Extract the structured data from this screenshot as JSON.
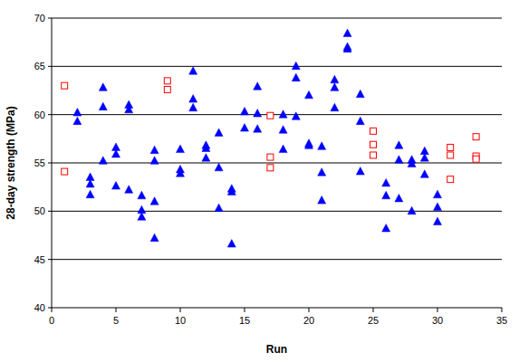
{
  "chart_data": {
    "type": "scatter",
    "xlabel": "Run",
    "ylabel": "28-day strength (MPa)",
    "xlim": [
      0,
      35
    ],
    "xticks": [
      0,
      5,
      10,
      15,
      20,
      25,
      30,
      35
    ],
    "ylim": [
      40,
      70
    ],
    "yticks": [
      40,
      45,
      50,
      55,
      60,
      65,
      70
    ],
    "grid": "y",
    "series": [
      {
        "color": "#0000ff",
        "marker": "triangle",
        "x": [
          2,
          2,
          3,
          3,
          3,
          4,
          4,
          4,
          5,
          5,
          5,
          6,
          6,
          6,
          7,
          7,
          7,
          8,
          8,
          8,
          8,
          10,
          10,
          10,
          11,
          11,
          11,
          12,
          12,
          12,
          13,
          13,
          13,
          14,
          14,
          14,
          15,
          15,
          16,
          16,
          16,
          18,
          18,
          18,
          19,
          19,
          19,
          20,
          20,
          20,
          21,
          21,
          21,
          22,
          22,
          22,
          23,
          23,
          23,
          24,
          24,
          24,
          26,
          26,
          26,
          27,
          27,
          27,
          28,
          28,
          28,
          29,
          29,
          29,
          30,
          30,
          30
        ],
        "values": [
          60.2,
          59.3,
          53.5,
          52.8,
          51.7,
          62.8,
          60.8,
          55.2,
          56.6,
          55.9,
          52.6,
          61.0,
          60.5,
          52.2,
          51.6,
          50.1,
          49.4,
          56.3,
          55.2,
          51.0,
          47.2,
          56.4,
          54.3,
          53.9,
          64.5,
          61.6,
          60.7,
          56.8,
          56.5,
          55.5,
          58.1,
          54.5,
          50.3,
          52.3,
          52.0,
          46.6,
          60.3,
          58.6,
          62.9,
          60.1,
          58.5,
          60.0,
          58.4,
          56.4,
          65.0,
          63.8,
          59.8,
          62.0,
          57.0,
          56.8,
          56.7,
          54.0,
          51.1,
          63.6,
          62.8,
          60.7,
          68.4,
          67.0,
          66.8,
          62.1,
          59.3,
          54.1,
          52.9,
          51.6,
          48.2,
          56.8,
          55.3,
          51.3,
          55.3,
          54.9,
          50.0,
          56.2,
          55.5,
          53.8,
          51.7,
          50.4,
          48.9
        ]
      },
      {
        "color": "#ff0000",
        "marker": "square",
        "x": [
          1,
          1,
          9,
          9,
          17,
          17,
          17,
          25,
          25,
          25,
          31,
          31,
          31,
          33,
          33,
          33
        ],
        "values": [
          63.0,
          54.1,
          63.5,
          62.6,
          59.9,
          55.6,
          54.5,
          58.3,
          56.9,
          55.8,
          56.6,
          55.8,
          53.3,
          57.7,
          55.7,
          55.4
        ]
      }
    ]
  }
}
